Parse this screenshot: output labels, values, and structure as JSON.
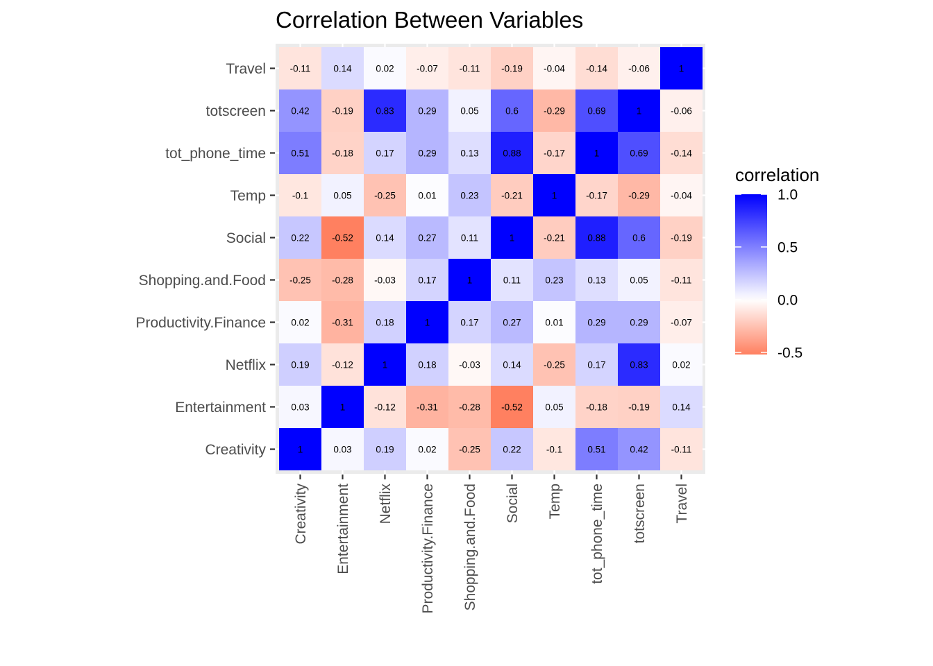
{
  "chart_data": {
    "type": "heatmap",
    "title": "Correlation Between Variables",
    "x_categories": [
      "Creativity",
      "Entertainment",
      "Netflix",
      "Productivity.Finance",
      "Shopping.and.Food",
      "Social",
      "Temp",
      "tot_phone_time",
      "totscreen",
      "Travel"
    ],
    "y_categories": [
      "Creativity",
      "Entertainment",
      "Netflix",
      "Productivity.Finance",
      "Shopping.and.Food",
      "Social",
      "Temp",
      "tot_phone_time",
      "totscreen",
      "Travel"
    ],
    "values": [
      [
        1,
        0.03,
        0.19,
        0.02,
        -0.25,
        0.22,
        -0.1,
        0.51,
        0.42,
        -0.11
      ],
      [
        0.03,
        1,
        -0.12,
        -0.31,
        -0.28,
        -0.52,
        0.05,
        -0.18,
        -0.19,
        0.14
      ],
      [
        0.19,
        -0.12,
        1,
        0.18,
        -0.03,
        0.14,
        -0.25,
        0.17,
        0.83,
        0.02
      ],
      [
        0.02,
        -0.31,
        0.18,
        1,
        0.17,
        0.27,
        0.01,
        0.29,
        0.29,
        -0.07
      ],
      [
        -0.25,
        -0.28,
        -0.03,
        0.17,
        1,
        0.11,
        0.23,
        0.13,
        0.05,
        -0.11
      ],
      [
        0.22,
        -0.52,
        0.14,
        0.27,
        0.11,
        1,
        -0.21,
        0.88,
        0.6,
        -0.19
      ],
      [
        -0.1,
        0.05,
        -0.25,
        0.01,
        0.23,
        -0.21,
        1,
        -0.17,
        -0.29,
        -0.04
      ],
      [
        0.51,
        -0.18,
        0.17,
        0.29,
        0.13,
        0.88,
        -0.17,
        1,
        0.69,
        -0.14
      ],
      [
        0.42,
        -0.19,
        0.83,
        0.29,
        0.05,
        0.6,
        -0.29,
        0.69,
        1,
        -0.06
      ],
      [
        -0.11,
        0.14,
        0.02,
        -0.07,
        -0.11,
        -0.19,
        -0.04,
        -0.14,
        -0.06,
        1
      ]
    ],
    "color_scale": {
      "low": "#ff8060",
      "mid": "#ffffff",
      "high": "#0000ff",
      "limits": [
        -0.52,
        1.0
      ]
    },
    "legend": {
      "title": "correlation",
      "breaks": [
        1.0,
        0.5,
        0.0,
        -0.5
      ],
      "labels": [
        "1.0",
        "0.5",
        "0.0",
        "-0.5"
      ],
      "position": "right"
    },
    "panel_background": "#ebebeb",
    "grid_color": "#ffffff",
    "grid": true
  }
}
